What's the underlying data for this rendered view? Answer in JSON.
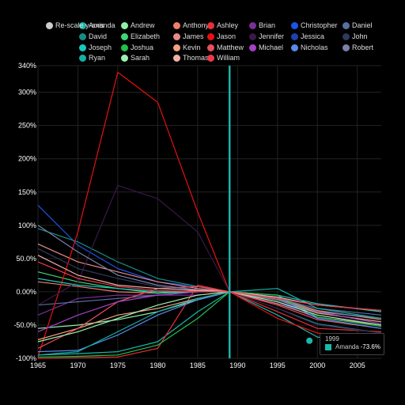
{
  "rescale_label": "Re-scale y-axis",
  "chart_data": {
    "type": "line",
    "title": "",
    "xlabel": "",
    "ylabel": "",
    "xlim": [
      1965,
      2008
    ],
    "ylim": [
      -1.0,
      3.4
    ],
    "x_ticks": [
      1965,
      1970,
      1975,
      1980,
      1985,
      1990,
      1995,
      2000,
      2005
    ],
    "y_ticks": [
      -1.0,
      -0.5,
      0.0,
      0.5,
      1.0,
      1.5,
      2.0,
      2.5,
      3.0,
      3.4
    ],
    "y_tick_labels": [
      "-100%",
      "-50.0%",
      "0.00%",
      "50.0%",
      "100%",
      "150%",
      "200%",
      "250%",
      "300%",
      "340%"
    ],
    "reference_year": 1989,
    "grid": true,
    "legend_position": "top",
    "x": [
      1965,
      1970,
      1975,
      1980,
      1985,
      1989,
      1995,
      2000,
      2008
    ],
    "series": [
      {
        "name": "Amanda",
        "color": "#1ab8aa",
        "values": [
          -0.95,
          -0.93,
          -0.9,
          -0.75,
          -0.3,
          0,
          -0.35,
          -0.68,
          -0.8
        ]
      },
      {
        "name": "Andrew",
        "color": "#8ff0a8",
        "values": [
          -0.55,
          -0.5,
          -0.42,
          -0.3,
          -0.12,
          0,
          -0.12,
          -0.32,
          -0.45
        ]
      },
      {
        "name": "Anthony",
        "color": "#f07e6e",
        "values": [
          0.15,
          0.08,
          0.0,
          -0.02,
          0.02,
          0,
          -0.1,
          -0.28,
          -0.42
        ]
      },
      {
        "name": "Ashley",
        "color": "#e8303a",
        "values": [
          -1.0,
          -0.99,
          -0.98,
          -0.85,
          0.1,
          0,
          -0.3,
          -0.55,
          -0.6
        ]
      },
      {
        "name": "Brian",
        "color": "#7a2e98",
        "values": [
          -0.35,
          -0.1,
          -0.05,
          -0.05,
          -0.05,
          0,
          -0.15,
          -0.32,
          -0.45
        ]
      },
      {
        "name": "Christopher",
        "color": "#1a55e8",
        "values": [
          1.3,
          0.7,
          0.35,
          0.15,
          0.08,
          0,
          -0.15,
          -0.4,
          -0.55
        ]
      },
      {
        "name": "Daniel",
        "color": "#5a6ea0",
        "values": [
          -0.2,
          -0.15,
          -0.1,
          -0.05,
          0.0,
          0,
          -0.1,
          -0.25,
          -0.35
        ]
      },
      {
        "name": "David",
        "color": "#1a8a84",
        "values": [
          0.95,
          0.75,
          0.45,
          0.2,
          0.08,
          0,
          -0.25,
          -0.48,
          -0.62
        ]
      },
      {
        "name": "Elizabeth",
        "color": "#3cd878",
        "values": [
          0.3,
          0.15,
          0.05,
          -0.02,
          0.0,
          0,
          -0.1,
          -0.3,
          -0.4
        ]
      },
      {
        "name": "James",
        "color": "#e88a8a",
        "values": [
          0.72,
          0.45,
          0.3,
          0.15,
          0.05,
          0,
          -0.18,
          -0.38,
          -0.5
        ]
      },
      {
        "name": "Jason",
        "color": "#e81010",
        "values": [
          -0.98,
          0.9,
          3.3,
          2.85,
          1.2,
          0,
          -0.4,
          -0.62,
          -0.72
        ]
      },
      {
        "name": "Jennifer",
        "color": "#3a1848",
        "values": [
          -0.2,
          0.15,
          1.6,
          1.4,
          0.9,
          0,
          -0.25,
          -0.5,
          -0.62
        ]
      },
      {
        "name": "John",
        "color": "#2e3a5a",
        "values": [
          0.65,
          0.35,
          0.2,
          0.08,
          0.02,
          0,
          -0.15,
          -0.35,
          -0.5
        ]
      },
      {
        "name": "Joseph",
        "color": "#18c8c0",
        "values": [
          0.2,
          0.1,
          0.05,
          0.0,
          0.0,
          0,
          -0.05,
          -0.18,
          -0.3
        ]
      },
      {
        "name": "Joshua",
        "color": "#22c048",
        "values": [
          -0.98,
          -0.97,
          -0.95,
          -0.8,
          -0.4,
          0,
          -0.05,
          -0.38,
          -0.52
        ]
      },
      {
        "name": "Kevin",
        "color": "#f0a080",
        "values": [
          -0.72,
          -0.55,
          -0.35,
          -0.25,
          -0.1,
          0,
          -0.12,
          -0.32,
          -0.45
        ]
      },
      {
        "name": "Matthew",
        "color": "#e8505a",
        "values": [
          -0.85,
          -0.55,
          -0.15,
          0.05,
          0.08,
          0,
          -0.2,
          -0.42,
          -0.55
        ]
      },
      {
        "name": "Michael",
        "color": "#a840c8",
        "values": [
          -0.6,
          -0.35,
          -0.15,
          -0.05,
          0.0,
          0,
          -0.12,
          -0.3,
          -0.48
        ]
      },
      {
        "name": "Nicholas",
        "color": "#5a8ae8",
        "values": [
          -0.9,
          -0.88,
          -0.65,
          -0.35,
          -0.12,
          0,
          -0.08,
          -0.4,
          -0.55
        ]
      },
      {
        "name": "Robert",
        "color": "#7a80a8",
        "values": [
          1.0,
          0.6,
          0.25,
          0.1,
          0.03,
          0,
          -0.12,
          -0.3,
          -0.4
        ]
      },
      {
        "name": "Ryan",
        "color": "#14b0a8",
        "values": [
          -0.95,
          -0.9,
          -0.6,
          -0.3,
          -0.1,
          0,
          0.05,
          -0.25,
          -0.4
        ]
      },
      {
        "name": "Sarah",
        "color": "#a0f0b0",
        "values": [
          -0.75,
          -0.6,
          -0.4,
          -0.2,
          -0.05,
          0,
          -0.15,
          -0.35,
          -0.5
        ]
      },
      {
        "name": "Thomas",
        "color": "#f0b0a8",
        "values": [
          0.55,
          0.25,
          0.1,
          0.05,
          0.02,
          0,
          -0.08,
          -0.2,
          -0.28
        ]
      },
      {
        "name": "William",
        "color": "#f03848",
        "values": [
          0.45,
          0.2,
          0.08,
          0.02,
          0.0,
          0,
          -0.1,
          -0.2,
          -0.28
        ]
      }
    ]
  },
  "tooltip": {
    "year": "1999",
    "name": "Amanda",
    "value": "-73.6%",
    "point_x": 1999,
    "point_y": -0.736
  }
}
